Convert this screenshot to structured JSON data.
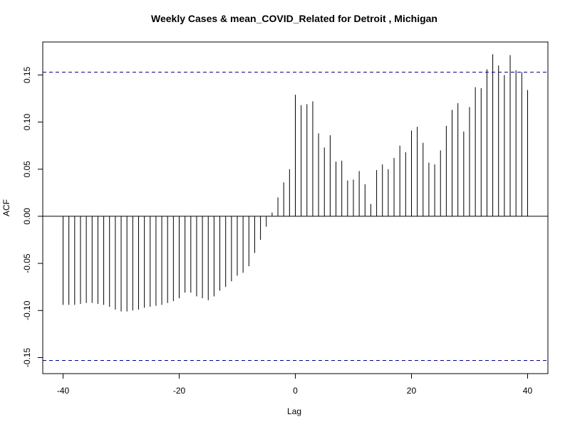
{
  "chart_data": {
    "type": "bar",
    "title": "Weekly Cases & mean_COVID_Related for Detroit , Michigan",
    "xlabel": "Lag",
    "ylabel": "ACF",
    "xlim": [
      -43.5,
      43.5
    ],
    "ylim": [
      -0.167,
      0.185
    ],
    "x_ticks": [
      -40,
      -20,
      0,
      20,
      40
    ],
    "x_tick_labels": [
      "-40",
      "-20",
      "0",
      "20",
      "40"
    ],
    "y_ticks": [
      -0.15,
      -0.1,
      -0.05,
      0.0,
      0.05,
      0.1,
      0.15
    ],
    "y_tick_labels": [
      "-0.15",
      "-0.10",
      "-0.05",
      "0.00",
      "0.05",
      "0.10",
      "0.15"
    ],
    "confidence_bounds": [
      0.153,
      -0.153
    ],
    "bound_color": "#00008b",
    "zero_line": 0,
    "grid": false,
    "x": [
      -40,
      -39,
      -38,
      -37,
      -36,
      -35,
      -34,
      -33,
      -32,
      -31,
      -30,
      -29,
      -28,
      -27,
      -26,
      -25,
      -24,
      -23,
      -22,
      -21,
      -20,
      -19,
      -18,
      -17,
      -16,
      -15,
      -14,
      -13,
      -12,
      -11,
      -10,
      -9,
      -8,
      -7,
      -6,
      -5,
      -4,
      -3,
      -2,
      -1,
      0,
      1,
      2,
      3,
      4,
      5,
      6,
      7,
      8,
      9,
      10,
      11,
      12,
      13,
      14,
      15,
      16,
      17,
      18,
      19,
      20,
      21,
      22,
      23,
      24,
      25,
      26,
      27,
      28,
      29,
      30,
      31,
      32,
      33,
      34,
      35,
      36,
      37,
      38,
      39,
      40
    ],
    "values": [
      -0.094,
      -0.094,
      -0.094,
      -0.093,
      -0.092,
      -0.092,
      -0.093,
      -0.094,
      -0.096,
      -0.099,
      -0.101,
      -0.101,
      -0.1,
      -0.099,
      -0.097,
      -0.096,
      -0.095,
      -0.094,
      -0.092,
      -0.09,
      -0.087,
      -0.081,
      -0.081,
      -0.085,
      -0.087,
      -0.089,
      -0.085,
      -0.079,
      -0.075,
      -0.069,
      -0.063,
      -0.06,
      -0.053,
      -0.039,
      -0.025,
      -0.011,
      0.004,
      0.02,
      0.036,
      0.05,
      0.129,
      0.118,
      0.119,
      0.122,
      0.088,
      0.073,
      0.086,
      0.058,
      0.059,
      0.038,
      0.039,
      0.048,
      0.034,
      0.013,
      0.049,
      0.055,
      0.05,
      0.062,
      0.075,
      0.068,
      0.091,
      0.095,
      0.078,
      0.057,
      0.055,
      0.07,
      0.096,
      0.113,
      0.12,
      0.09,
      0.116,
      0.137,
      0.136,
      0.156,
      0.172,
      0.16,
      0.15,
      0.171,
      0.155,
      0.153,
      0.134
    ]
  }
}
